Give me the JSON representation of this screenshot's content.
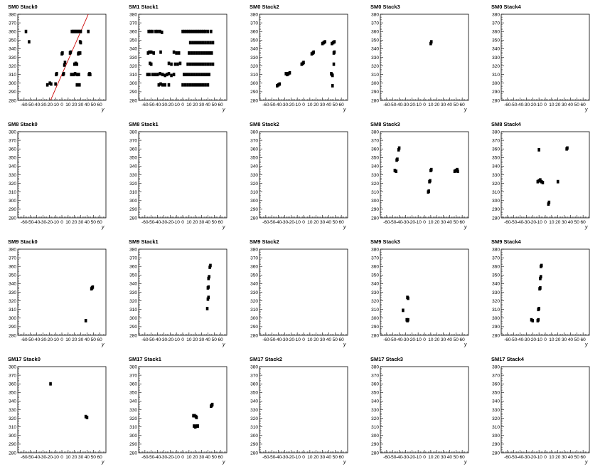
{
  "chart_data": {
    "type": "scatter",
    "shared": {
      "xlabel": "y",
      "xlim": [
        -70,
        70
      ],
      "ylim": [
        280,
        380
      ],
      "xticks": [
        -60,
        -50,
        -40,
        -30,
        -20,
        -10,
        0,
        10,
        20,
        30,
        40,
        50,
        60
      ],
      "yticks": [
        280,
        290,
        300,
        310,
        320,
        330,
        340,
        350,
        360,
        370,
        380
      ],
      "marker_color": "#000000",
      "fit_line_color": "#cc0000"
    },
    "panels": [
      {
        "title": "SM0 Stack0",
        "fit_line": [
          [
            -18,
            280
          ],
          [
            42,
            380
          ]
        ],
        "points": [
          [
            -57,
            360
          ],
          [
            -52,
            348
          ],
          [
            -23,
            298
          ],
          [
            -19,
            300
          ],
          [
            -17,
            299
          ],
          [
            -10,
            299
          ],
          [
            -9,
            310
          ],
          [
            -8,
            311
          ],
          [
            0,
            334
          ],
          [
            1,
            335
          ],
          [
            2,
            310
          ],
          [
            3,
            311
          ],
          [
            4,
            321
          ],
          [
            5,
            324
          ],
          [
            13,
            335
          ],
          [
            14,
            336
          ],
          [
            16,
            360
          ],
          [
            18,
            360
          ],
          [
            20,
            360
          ],
          [
            22,
            360
          ],
          [
            24,
            360
          ],
          [
            26,
            360
          ],
          [
            28,
            360
          ],
          [
            30,
            360
          ],
          [
            15,
            310
          ],
          [
            19,
            310
          ],
          [
            21,
            311
          ],
          [
            24,
            310
          ],
          [
            27,
            310
          ],
          [
            20,
            322
          ],
          [
            22,
            323
          ],
          [
            24,
            322
          ],
          [
            26,
            334
          ],
          [
            27,
            335
          ],
          [
            29,
            335
          ],
          [
            29,
            348
          ],
          [
            30,
            347
          ],
          [
            24,
            298
          ],
          [
            28,
            298
          ],
          [
            42,
            360
          ],
          [
            43,
            310
          ],
          [
            44,
            311
          ],
          [
            45,
            310
          ]
        ]
      },
      {
        "title": "SM1 Stack1",
        "points": [
          [
            -54,
            360
          ],
          [
            -51,
            360
          ],
          [
            -48,
            360
          ],
          [
            -43,
            360
          ],
          [
            -40,
            360
          ],
          [
            -36,
            360
          ],
          [
            -33,
            359
          ],
          [
            -55,
            335
          ],
          [
            -53,
            336
          ],
          [
            -50,
            336
          ],
          [
            -46,
            335
          ],
          [
            -52,
            323
          ],
          [
            -50,
            322
          ],
          [
            -56,
            310
          ],
          [
            -53,
            310
          ],
          [
            -48,
            310
          ],
          [
            -44,
            310
          ],
          [
            -40,
            310
          ],
          [
            -36,
            311
          ],
          [
            -32,
            310
          ],
          [
            -28,
            309
          ],
          [
            -25,
            310
          ],
          [
            -22,
            311
          ],
          [
            -18,
            309
          ],
          [
            -14,
            310
          ],
          [
            -38,
            298
          ],
          [
            -35,
            299
          ],
          [
            -32,
            298
          ],
          [
            -28,
            298
          ],
          [
            -22,
            298
          ],
          [
            -35,
            336
          ],
          [
            -22,
            323
          ],
          [
            -18,
            322
          ],
          [
            -12,
            322
          ],
          [
            -8,
            322
          ],
          [
            -4,
            323
          ],
          [
            -14,
            336
          ],
          [
            -10,
            335
          ],
          [
            -6,
            335
          ],
          [
            0,
            360
          ],
          [
            3,
            360
          ],
          [
            6,
            360
          ],
          [
            9,
            360
          ],
          [
            12,
            360
          ],
          [
            15,
            360
          ],
          [
            18,
            360
          ],
          [
            21,
            360
          ],
          [
            24,
            360
          ],
          [
            27,
            360
          ],
          [
            30,
            360
          ],
          [
            33,
            360
          ],
          [
            36,
            360
          ],
          [
            40,
            360
          ],
          [
            45,
            360
          ],
          [
            0,
            298
          ],
          [
            4,
            298
          ],
          [
            8,
            298
          ],
          [
            12,
            298
          ],
          [
            16,
            298
          ],
          [
            20,
            298
          ],
          [
            24,
            298
          ],
          [
            28,
            298
          ],
          [
            32,
            298
          ],
          [
            36,
            298
          ],
          [
            40,
            298
          ],
          [
            2,
            310
          ],
          [
            6,
            310
          ],
          [
            10,
            310
          ],
          [
            14,
            310
          ],
          [
            18,
            310
          ],
          [
            22,
            310
          ],
          [
            26,
            310
          ],
          [
            30,
            310
          ],
          [
            34,
            310
          ],
          [
            38,
            310
          ],
          [
            42,
            310
          ],
          [
            8,
            322
          ],
          [
            12,
            322
          ],
          [
            16,
            322
          ],
          [
            20,
            322
          ],
          [
            24,
            322
          ],
          [
            28,
            322
          ],
          [
            32,
            322
          ],
          [
            36,
            322
          ],
          [
            40,
            322
          ],
          [
            44,
            322
          ],
          [
            48,
            322
          ],
          [
            10,
            335
          ],
          [
            14,
            335
          ],
          [
            18,
            335
          ],
          [
            22,
            335
          ],
          [
            26,
            335
          ],
          [
            30,
            335
          ],
          [
            34,
            335
          ],
          [
            38,
            335
          ],
          [
            42,
            335
          ],
          [
            46,
            335
          ],
          [
            12,
            347
          ],
          [
            16,
            347
          ],
          [
            20,
            347
          ],
          [
            24,
            347
          ],
          [
            28,
            347
          ],
          [
            32,
            347
          ],
          [
            36,
            347
          ],
          [
            40,
            347
          ],
          [
            44,
            347
          ],
          [
            48,
            347
          ]
        ]
      },
      {
        "title": "SM0 Stack2",
        "points": [
          [
            -42,
            297
          ],
          [
            -40,
            298
          ],
          [
            -38,
            299
          ],
          [
            -28,
            311
          ],
          [
            -26,
            310
          ],
          [
            -24,
            311
          ],
          [
            -22,
            312
          ],
          [
            -3,
            322
          ],
          [
            -1,
            323
          ],
          [
            0,
            324
          ],
          [
            13,
            334
          ],
          [
            15,
            335
          ],
          [
            16,
            336
          ],
          [
            30,
            346
          ],
          [
            32,
            347
          ],
          [
            34,
            348
          ],
          [
            45,
            346
          ],
          [
            47,
            347
          ],
          [
            49,
            348
          ],
          [
            48,
            335
          ],
          [
            49,
            336
          ],
          [
            48,
            322
          ],
          [
            44,
            311
          ],
          [
            45,
            310
          ],
          [
            46,
            309
          ],
          [
            46,
            297
          ]
        ]
      },
      {
        "title": "SM0 Stack3",
        "points": [
          [
            10,
            346
          ],
          [
            11,
            348
          ]
        ]
      },
      {
        "title": "SM0 Stack4",
        "points": []
      },
      {
        "title": "SM8 Stack0",
        "points": []
      },
      {
        "title": "SM8 Stack1",
        "points": []
      },
      {
        "title": "SM8 Stack2",
        "points": []
      },
      {
        "title": "SM8 Stack3",
        "points": [
          [
            -47,
            335
          ],
          [
            -45,
            334
          ],
          [
            -44,
            347
          ],
          [
            -43,
            348
          ],
          [
            -41,
            359
          ],
          [
            -40,
            361
          ],
          [
            6,
            310
          ],
          [
            7,
            311
          ],
          [
            8,
            322
          ],
          [
            9,
            323
          ],
          [
            10,
            335
          ],
          [
            11,
            336
          ],
          [
            48,
            334
          ],
          [
            50,
            335
          ],
          [
            52,
            336
          ],
          [
            53,
            334
          ]
        ]
      },
      {
        "title": "SM8 Stack4",
        "points": [
          [
            -10,
            359
          ],
          [
            -12,
            322
          ],
          [
            -10,
            323
          ],
          [
            -8,
            324
          ],
          [
            -6,
            322
          ],
          [
            -4,
            321
          ],
          [
            5,
            296
          ],
          [
            6,
            298
          ],
          [
            20,
            322
          ],
          [
            34,
            360
          ],
          [
            35,
            361
          ]
        ]
      },
      {
        "title": "SM9 Stack0",
        "points": [
          [
            47,
            334
          ],
          [
            48,
            335
          ],
          [
            49,
            336
          ],
          [
            38,
            297
          ]
        ]
      },
      {
        "title": "SM9 Stack1",
        "points": [
          [
            43,
            359
          ],
          [
            44,
            361
          ],
          [
            41,
            346
          ],
          [
            42,
            348
          ],
          [
            40,
            335
          ],
          [
            41,
            336
          ],
          [
            40,
            322
          ],
          [
            41,
            324
          ],
          [
            39,
            311
          ]
        ]
      },
      {
        "title": "SM9 Stack2",
        "points": []
      },
      {
        "title": "SM9 Stack3",
        "points": [
          [
            -27,
            324
          ],
          [
            -26,
            323
          ],
          [
            -34,
            309
          ],
          [
            -28,
            298
          ],
          [
            -27,
            297
          ],
          [
            -26,
            298
          ]
        ]
      },
      {
        "title": "SM9 Stack4",
        "points": [
          [
            -7,
            360
          ],
          [
            -6,
            361
          ],
          [
            -8,
            346
          ],
          [
            -7,
            348
          ],
          [
            -9,
            334
          ],
          [
            -8,
            335
          ],
          [
            -11,
            310
          ],
          [
            -10,
            311
          ],
          [
            -12,
            297
          ],
          [
            -11,
            298
          ],
          [
            -22,
            298
          ],
          [
            -20,
            297
          ]
        ]
      },
      {
        "title": "SM17 Stack0",
        "points": [
          [
            -18,
            360
          ],
          [
            38,
            322
          ],
          [
            40,
            321
          ]
        ]
      },
      {
        "title": "SM17 Stack1",
        "points": [
          [
            17,
            323
          ],
          [
            19,
            323
          ],
          [
            21,
            322
          ],
          [
            22,
            321
          ],
          [
            18,
            311
          ],
          [
            20,
            310
          ],
          [
            22,
            311
          ],
          [
            24,
            311
          ],
          [
            45,
            334
          ],
          [
            46,
            335
          ],
          [
            47,
            336
          ]
        ]
      },
      {
        "title": "SM17 Stack2",
        "points": []
      },
      {
        "title": "SM17 Stack3",
        "points": []
      },
      {
        "title": "SM17 Stack4",
        "points": []
      }
    ]
  }
}
